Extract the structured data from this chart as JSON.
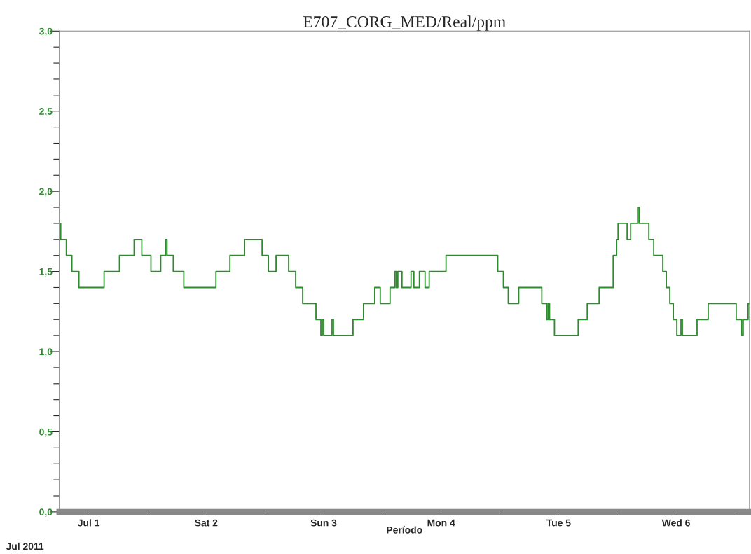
{
  "chart_data": {
    "type": "step",
    "title": "E707_CORG_MED/Real/ppm",
    "xlabel": "Período",
    "annotations": [
      "Jul 2011"
    ],
    "x": [
      "2011-06-30T18:00",
      "2011-06-30T18:17",
      "2011-06-30T19:26",
      "2011-06-30T20:34",
      "2011-06-30T22:00",
      "2011-07-01T03:09",
      "2011-07-01T06:17",
      "2011-07-01T09:17",
      "2011-07-01T10:51",
      "2011-07-01T12:43",
      "2011-07-01T14:43",
      "2011-07-01T15:43",
      "2011-07-01T16:00",
      "2011-07-01T17:17",
      "2011-07-01T19:26",
      "2011-07-02T02:00",
      "2011-07-02T04:51",
      "2011-07-02T07:51",
      "2011-07-02T11:26",
      "2011-07-02T12:43",
      "2011-07-02T14:17",
      "2011-07-02T16:51",
      "2011-07-02T18:17",
      "2011-07-02T19:43",
      "2011-07-02T22:26",
      "2011-07-02T23:26",
      "2011-07-02T23:43",
      "2011-07-03T00:00",
      "2011-07-03T01:43",
      "2011-07-03T02:00",
      "2011-07-03T06:00",
      "2011-07-03T08:09",
      "2011-07-03T10:26",
      "2011-07-03T11:34",
      "2011-07-03T13:34",
      "2011-07-03T14:34",
      "2011-07-03T14:51",
      "2011-07-03T15:09",
      "2011-07-03T16:00",
      "2011-07-03T17:51",
      "2011-07-03T18:26",
      "2011-07-03T19:34",
      "2011-07-03T20:43",
      "2011-07-03T21:34",
      "2011-07-04T01:00",
      "2011-07-04T11:34",
      "2011-07-04T12:43",
      "2011-07-04T13:43",
      "2011-07-04T15:51",
      "2011-07-04T20:34",
      "2011-07-04T21:34",
      "2011-07-04T21:51",
      "2011-07-04T22:09",
      "2011-07-04T23:09",
      "2011-07-05T04:00",
      "2011-07-05T05:51",
      "2011-07-05T08:17",
      "2011-07-05T11:09",
      "2011-07-05T11:51",
      "2011-07-05T12:09",
      "2011-07-05T14:00",
      "2011-07-05T14:43",
      "2011-07-05T16:09",
      "2011-07-05T16:26",
      "2011-07-05T18:26",
      "2011-07-05T19:26",
      "2011-07-05T21:17",
      "2011-07-05T22:00",
      "2011-07-05T22:43",
      "2011-07-05T23:26",
      "2011-07-06T00:09",
      "2011-07-06T01:00",
      "2011-07-06T01:17",
      "2011-07-06T04:17",
      "2011-07-06T06:34",
      "2011-07-06T12:17",
      "2011-07-06T13:26",
      "2011-07-06T13:43",
      "2011-07-06T14:43",
      "2011-07-06T15:00"
    ],
    "series": [
      {
        "color": "#2e8b2e",
        "values": [
          1.8,
          1.7,
          1.6,
          1.5,
          1.4,
          1.5,
          1.6,
          1.7,
          1.6,
          1.5,
          1.6,
          1.7,
          1.6,
          1.5,
          1.4,
          1.5,
          1.6,
          1.7,
          1.6,
          1.5,
          1.6,
          1.5,
          1.4,
          1.3,
          1.2,
          1.1,
          1.2,
          1.1,
          1.2,
          1.1,
          1.2,
          1.3,
          1.4,
          1.3,
          1.4,
          1.5,
          1.4,
          1.5,
          1.4,
          1.5,
          1.4,
          1.5,
          1.4,
          1.5,
          1.6,
          1.5,
          1.4,
          1.3,
          1.4,
          1.3,
          1.2,
          1.3,
          1.2,
          1.1,
          1.2,
          1.3,
          1.4,
          1.6,
          1.7,
          1.8,
          1.7,
          1.8,
          1.9,
          1.8,
          1.7,
          1.6,
          1.5,
          1.4,
          1.3,
          1.2,
          1.1,
          1.2,
          1.1,
          1.2,
          1.3,
          1.2,
          1.1,
          1.2,
          1.3,
          1.3
        ]
      }
    ],
    "xlim": [
      "2011-06-30T18:00",
      "2011-07-06T15:00"
    ],
    "xticks": [
      {
        "value": "2011-07-01",
        "label": "Jul 1"
      },
      {
        "value": "2011-07-01T12:00",
        "label": null
      },
      {
        "value": "2011-07-02",
        "label": "Sat 2"
      },
      {
        "value": "2011-07-02T12:00",
        "label": null
      },
      {
        "value": "2011-07-03",
        "label": "Sun 3"
      },
      {
        "value": "2011-07-03T12:00",
        "label": null
      },
      {
        "value": "2011-07-04",
        "label": "Mon 4"
      },
      {
        "value": "2011-07-04T12:00",
        "label": null
      },
      {
        "value": "2011-07-05",
        "label": "Tue 5"
      },
      {
        "value": "2011-07-05T12:00",
        "label": null
      },
      {
        "value": "2011-07-06",
        "label": "Wed 6"
      },
      {
        "value": "2011-07-06T12:00",
        "label": null
      }
    ],
    "ylim": [
      0,
      3
    ],
    "yticks": [
      {
        "value": 0,
        "label": "0,0"
      },
      {
        "value": 0.1,
        "label": null
      },
      {
        "value": 0.2,
        "label": null
      },
      {
        "value": 0.3,
        "label": null
      },
      {
        "value": 0.4,
        "label": null
      },
      {
        "value": 0.5,
        "label": "0,5"
      },
      {
        "value": 0.6,
        "label": null
      },
      {
        "value": 0.7,
        "label": null
      },
      {
        "value": 0.8,
        "label": null
      },
      {
        "value": 0.9,
        "label": null
      },
      {
        "value": 1.0,
        "label": "1,0"
      },
      {
        "value": 1.1,
        "label": null
      },
      {
        "value": 1.2,
        "label": null
      },
      {
        "value": 1.3,
        "label": null
      },
      {
        "value": 1.4,
        "label": null
      },
      {
        "value": 1.5,
        "label": "1,5"
      },
      {
        "value": 1.6,
        "label": null
      },
      {
        "value": 1.7,
        "label": null
      },
      {
        "value": 1.8,
        "label": null
      },
      {
        "value": 1.9,
        "label": null
      },
      {
        "value": 2.0,
        "label": "2,0"
      },
      {
        "value": 2.1,
        "label": null
      },
      {
        "value": 2.2,
        "label": null
      },
      {
        "value": 2.3,
        "label": null
      },
      {
        "value": 2.4,
        "label": null
      },
      {
        "value": 2.5,
        "label": "2,5"
      },
      {
        "value": 2.6,
        "label": null
      },
      {
        "value": 2.7,
        "label": null
      },
      {
        "value": 2.8,
        "label": null
      },
      {
        "value": 2.9,
        "label": null
      },
      {
        "value": 3.0,
        "label": "3,0"
      }
    ],
    "grid": false,
    "legend": false,
    "line_style": "solid"
  }
}
